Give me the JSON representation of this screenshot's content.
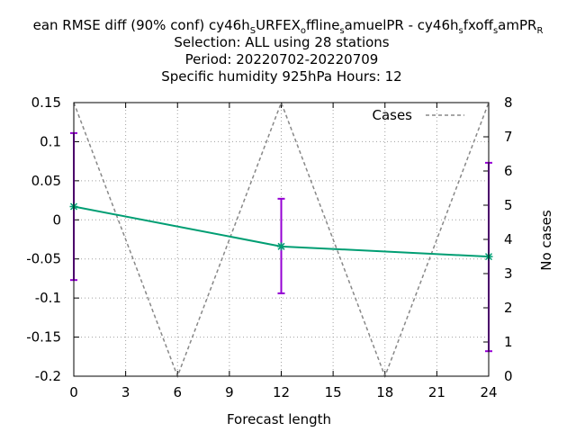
{
  "chart_data": {
    "type": "line",
    "title_lines": [
      "Mean RMSE diff (90% conf) cy46h_SURFEX_offline_samuelPR - cy46h_sfxoff_samPR_R",
      "Selection: ALL using    28 stations",
      "Period: 20220702-20220709",
      "Specific humidity 925hPa   Hours:  12"
    ],
    "title_main": {
      "parts": [
        {
          "text": "ean RMSE diff (90% conf) cy46h",
          "sub": false
        },
        {
          "text": "S",
          "sub": true
        },
        {
          "text": "URFEX",
          "sub": false
        },
        {
          "text": "o",
          "sub": true
        },
        {
          "text": "ffline",
          "sub": false
        },
        {
          "text": "s",
          "sub": true
        },
        {
          "text": "amuelPR - cy46h",
          "sub": false
        },
        {
          "text": "s",
          "sub": true
        },
        {
          "text": "fxoff",
          "sub": false
        },
        {
          "text": "s",
          "sub": true
        },
        {
          "text": "amPR",
          "sub": false
        },
        {
          "text": "R",
          "sub": true
        }
      ]
    },
    "xlabel": "Forecast length",
    "ylabel": "",
    "y2label": "No cases",
    "xlim": [
      0,
      24
    ],
    "ylim": [
      -0.2,
      0.15
    ],
    "y2lim": [
      0,
      8
    ],
    "xticks": [
      0,
      3,
      6,
      9,
      12,
      15,
      18,
      21,
      24
    ],
    "yticks": [
      -0.2,
      -0.15,
      -0.1,
      -0.05,
      0,
      0.05,
      0.1,
      0.15
    ],
    "ytick_labels": [
      "-0.2",
      "-0.15",
      "-0.1",
      "-0.05",
      "0",
      "0.05",
      "0.1",
      "0.15"
    ],
    "y2ticks": [
      0,
      1,
      2,
      3,
      4,
      5,
      6,
      7,
      8
    ],
    "grid": true,
    "legend_position": "top-right",
    "series": [
      {
        "name": "Cases",
        "axis": "y2",
        "style": "dashed",
        "color": "#888888",
        "x": [
          0,
          6,
          12,
          18,
          24
        ],
        "values": [
          8,
          0,
          8,
          0,
          8
        ]
      },
      {
        "axis": "y",
        "style": "line-points",
        "color": "#009e73",
        "x": [
          0,
          12,
          24
        ],
        "values": [
          0.017,
          -0.034,
          -0.047
        ]
      }
    ],
    "errorbars": {
      "color": "#9400d3",
      "x": [
        0,
        12,
        24
      ],
      "low": [
        -0.077,
        -0.094,
        -0.168
      ],
      "high": [
        0.111,
        0.027,
        0.073
      ]
    }
  }
}
